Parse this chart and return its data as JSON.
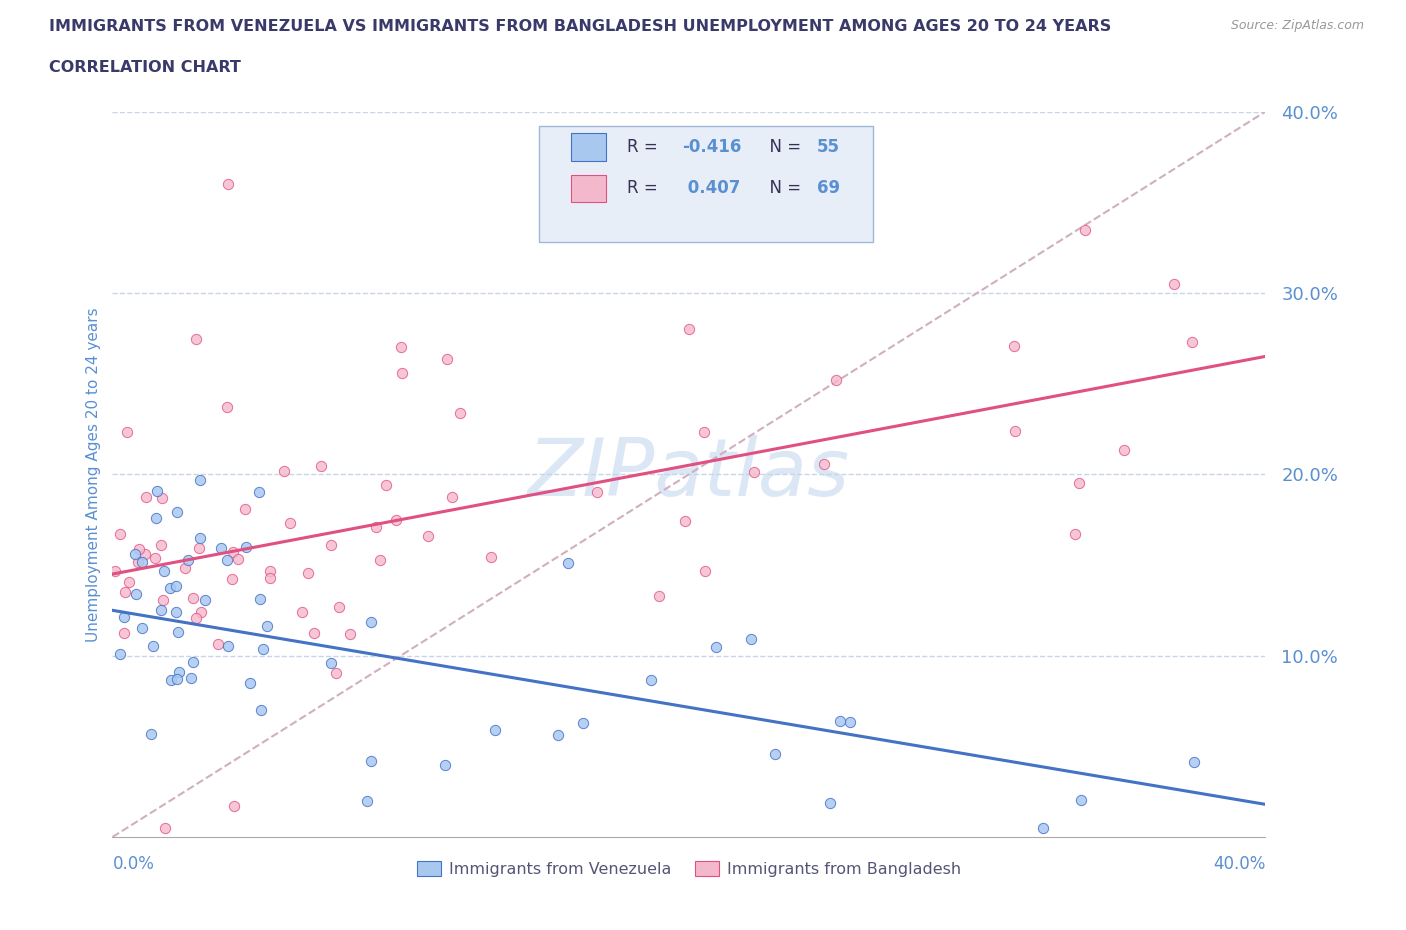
{
  "title_line1": "IMMIGRANTS FROM VENEZUELA VS IMMIGRANTS FROM BANGLADESH UNEMPLOYMENT AMONG AGES 20 TO 24 YEARS",
  "title_line2": "CORRELATION CHART",
  "source": "Source: ZipAtlas.com",
  "ylabel": "Unemployment Among Ages 20 to 24 years",
  "xlim": [
    0.0,
    0.4
  ],
  "ylim": [
    0.0,
    0.4
  ],
  "ytick_vals": [
    0.1,
    0.2,
    0.3,
    0.4
  ],
  "ytick_labels": [
    "10.0%",
    "20.0%",
    "30.0%",
    "40.0%"
  ],
  "watermark": "ZIPatlas",
  "color_venezuela": "#a8c8f0",
  "color_bangladesh": "#f4b8cc",
  "trendline_venezuela": "#4472c4",
  "trendline_bangladesh": "#e05080",
  "trendline_ref_color": "#d0b0c0",
  "background_color": "#ffffff",
  "title_color": "#3a3a6a",
  "axis_label_color": "#5a90d0",
  "grid_color": "#c8d4e8",
  "legend_box_color": "#e8eef8",
  "legend_border_color": "#a0b8d8",
  "ven_r": "R = -0.416",
  "ven_n": "N = 55",
  "ban_r": "R =  0.407",
  "ban_n": "N = 69",
  "ven_trend_x0": 0.0,
  "ven_trend_y0": 0.125,
  "ven_trend_x1": 0.4,
  "ven_trend_y1": 0.018,
  "ban_trend_x0": 0.0,
  "ban_trend_y0": 0.145,
  "ban_trend_x1": 0.4,
  "ban_trend_y1": 0.265,
  "ref_line_x0": 0.0,
  "ref_line_y0": 0.0,
  "ref_line_x1": 0.4,
  "ref_line_y1": 0.4,
  "seed": 123
}
